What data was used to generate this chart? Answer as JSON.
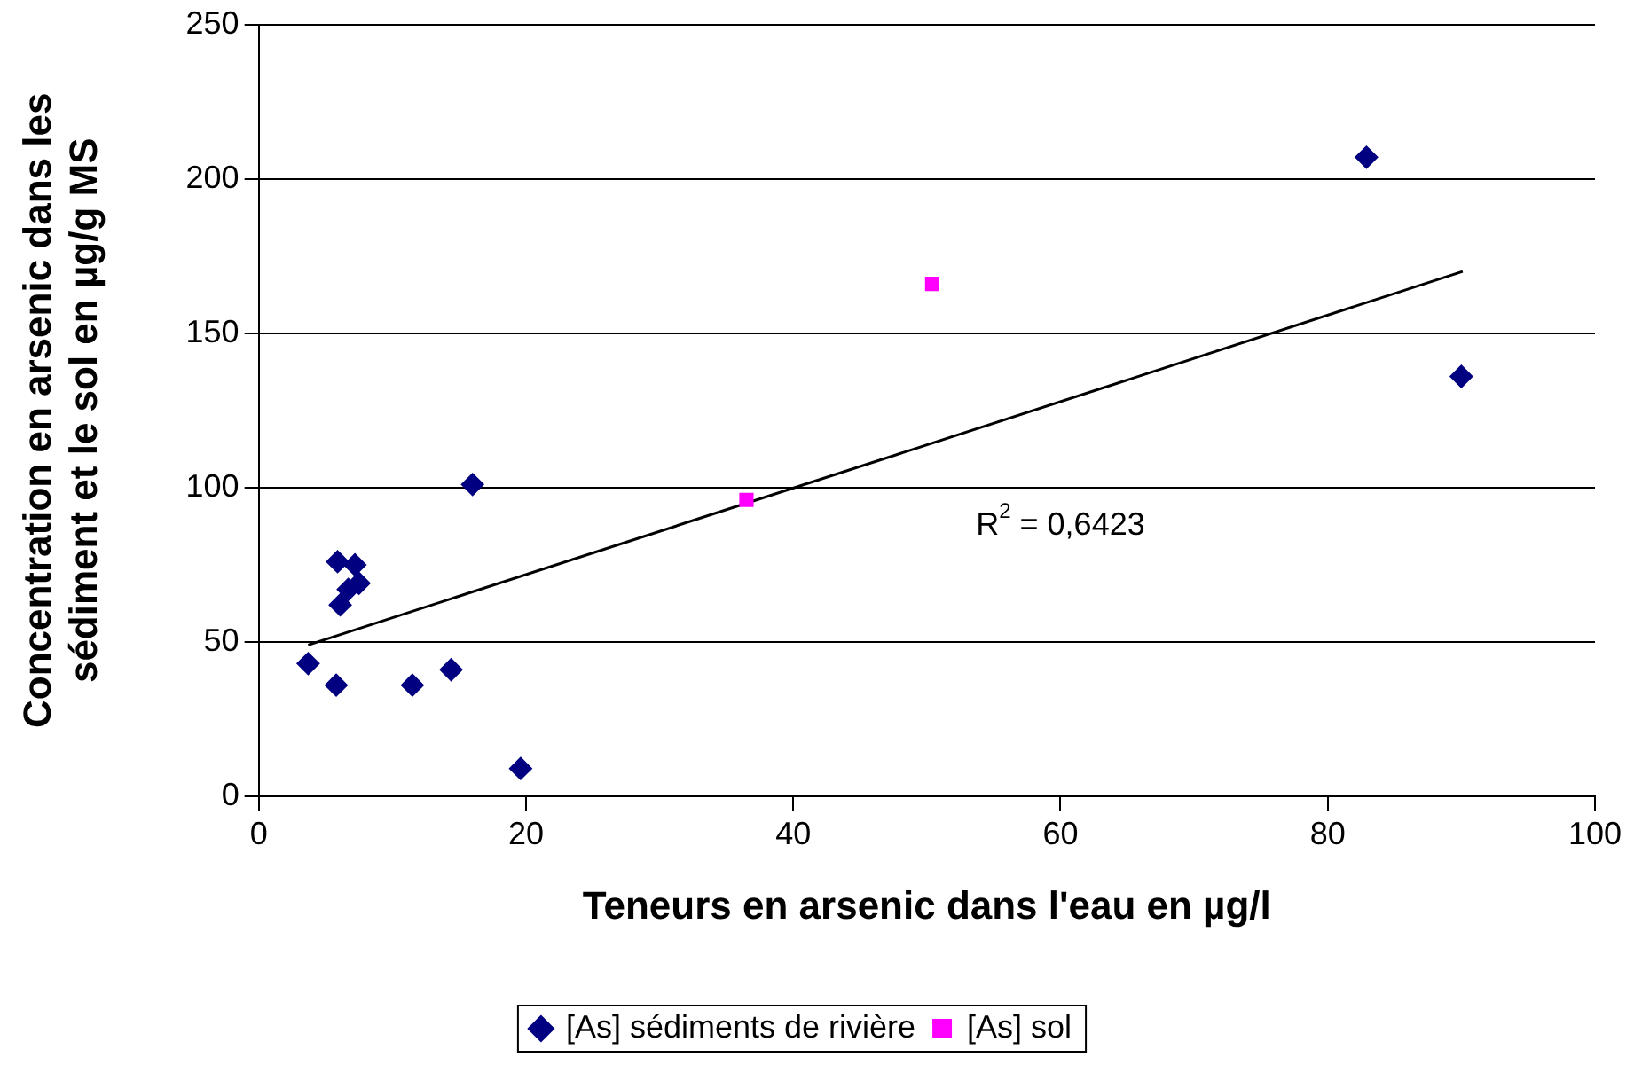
{
  "chart_data": {
    "type": "scatter",
    "xlabel": "Teneurs en arsenic dans l'eau en µg/l",
    "ylabel": "Concentration en arsenic dans les sédiment et le sol en µg/g MS",
    "xlim": [
      0,
      100
    ],
    "xticks": [
      0,
      20,
      40,
      60,
      80,
      100
    ],
    "ylim": [
      0,
      250
    ],
    "yticks": [
      0,
      50,
      100,
      150,
      200,
      250
    ],
    "grid": "y",
    "legend": "bottom",
    "series": [
      {
        "name": "[As] sédiments de rivière",
        "color": "#000080",
        "marker": "diamond",
        "x": [
          16,
          5.9,
          7.2,
          7.5,
          6.7,
          6.1,
          3.7,
          5.8,
          11.5,
          14.4,
          19.6,
          82.9,
          90
        ],
        "values": [
          101,
          76,
          75,
          69,
          67,
          62,
          43,
          36,
          36,
          41,
          9,
          207,
          136
        ]
      },
      {
        "name": "[As] sol",
        "color": "#ff00ff",
        "marker": "square",
        "x": [
          50.4,
          36.5
        ],
        "values": [
          166,
          96
        ]
      },
      {
        "type": "line",
        "color": "#000000",
        "marker": "none",
        "x": [
          3.7,
          90.1
        ],
        "values": [
          49,
          170
        ]
      }
    ],
    "annotations": [
      "R$^{2}$ = 0,6423"
    ]
  }
}
